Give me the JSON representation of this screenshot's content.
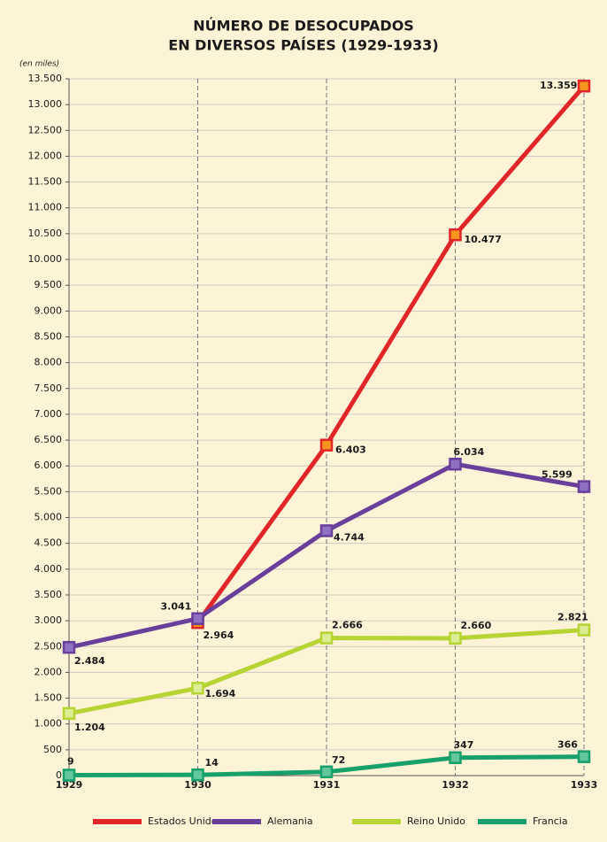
{
  "chart_data": {
    "type": "line",
    "title": [
      "NÚMERO DE DESOCUPADOS",
      "EN DIVERSOS PAÍSES (1929-1933)"
    ],
    "y_label": "(en miles)",
    "categories": [
      "1929",
      "1930",
      "1931",
      "1932",
      "1933"
    ],
    "series": [
      {
        "name": "Estados Unidos",
        "color": "#e1262a",
        "marker_fill": "#f7941d",
        "values": [
          null,
          2964,
          6403,
          10477,
          13359
        ],
        "value_labels": [
          null,
          "2.964",
          "6.403",
          "10.477",
          "13.359"
        ]
      },
      {
        "name": "Alemania",
        "color": "#6a3f9c",
        "marker_fill": "#8f71c4",
        "values": [
          2484,
          3041,
          4744,
          6034,
          5599
        ],
        "value_labels": [
          "2.484",
          "3.041",
          "4.744",
          "6.034",
          "5.599"
        ]
      },
      {
        "name": "Reino Unido",
        "color": "#b6d433",
        "marker_fill": "#dcec93",
        "values": [
          1204,
          1694,
          2666,
          2660,
          2821
        ],
        "value_labels": [
          "1.204",
          "1.694",
          "2.666",
          "2.660",
          "2.821"
        ]
      },
      {
        "name": "Francia",
        "color": "#17a06b",
        "marker_fill": "#62c79b",
        "values": [
          9,
          14,
          72,
          347,
          366
        ]
      }
    ],
    "ylim": [
      0,
      13500
    ],
    "yticks": [
      0,
      500,
      {
        "value": 1000,
        "label": "1.000"
      },
      {
        "value": 1500,
        "label": "1.500"
      },
      {
        "value": 2000,
        "label": "2.000"
      },
      {
        "value": 2500,
        "label": "2.500"
      },
      {
        "value": 3000,
        "label": "3.000"
      },
      {
        "value": 3500,
        "label": "3.500"
      },
      {
        "value": 4000,
        "label": "4.000"
      },
      {
        "value": 4500,
        "label": "4.500"
      },
      {
        "value": 5000,
        "label": "5.000"
      },
      {
        "value": 5500,
        "label": "5.500"
      },
      {
        "value": 6000,
        "label": "6.000"
      },
      {
        "value": 6500,
        "label": "6.500"
      },
      {
        "value": 7000,
        "label": "7.000"
      },
      {
        "value": 7500,
        "label": "7.500"
      },
      {
        "value": 8000,
        "label": "8.000"
      },
      {
        "value": 8500,
        "label": "8.500"
      },
      {
        "value": 9000,
        "label": "9.000"
      },
      {
        "value": 9500,
        "label": "9.500"
      },
      {
        "value": 10000,
        "label": "10.000"
      },
      {
        "value": 10500,
        "label": "10.500"
      },
      {
        "value": 11000,
        "label": "11.000"
      },
      {
        "value": 11500,
        "label": "11.500"
      },
      {
        "value": 12000,
        "label": "12.000"
      },
      {
        "value": 12500,
        "label": "12.500"
      },
      {
        "value": 13000,
        "label": "13.000"
      },
      {
        "value": 13500,
        "label": "13.500"
      }
    ],
    "grid": true,
    "legend": "bottom"
  }
}
